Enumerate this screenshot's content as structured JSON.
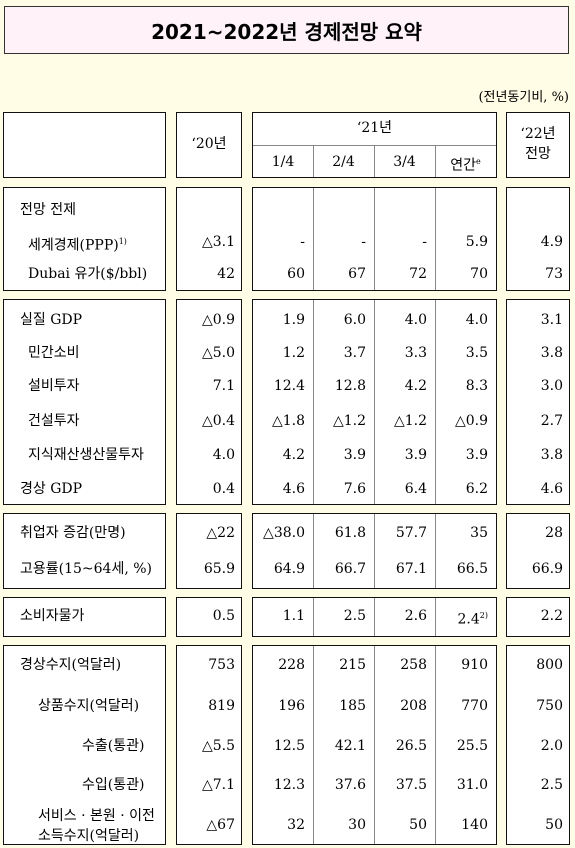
{
  "title": "2021~2022년 경제전망 요약",
  "unit": "(전년동기비, %)",
  "header": {
    "y20": "‘20년",
    "y21": "‘21년",
    "q1": "1/4",
    "q2": "2/4",
    "q3": "3/4",
    "annual": "연간",
    "annual_sup": "e",
    "y22_line1": "‘22년",
    "y22_line2": "전망"
  },
  "groups": [
    {
      "rows": [
        {
          "label": "전망 전제",
          "indent": 0,
          "values": [
            "",
            "",
            "",
            "",
            "",
            ""
          ]
        },
        {
          "label": "세계경제(PPP)",
          "sup": "1)",
          "indent": 1,
          "values": [
            "△3.1",
            "-",
            "-",
            "-",
            "5.9",
            "4.9"
          ]
        },
        {
          "label": "Dubai 유가($/bbl)",
          "indent": 2,
          "values": [
            "42",
            "60",
            "67",
            "72",
            "70",
            "73"
          ]
        }
      ]
    },
    {
      "rows": [
        {
          "label": "실질 GDP",
          "indent": 0,
          "values": [
            "△0.9",
            "1.9",
            "6.0",
            "4.0",
            "4.0",
            "3.1"
          ]
        },
        {
          "label": "민간소비",
          "indent": 1,
          "values": [
            "△5.0",
            "1.2",
            "3.7",
            "3.3",
            "3.5",
            "3.8"
          ]
        },
        {
          "label": "설비투자",
          "indent": 1,
          "values": [
            "7.1",
            "12.4",
            "12.8",
            "4.2",
            "8.3",
            "3.0"
          ]
        },
        {
          "label": "건설투자",
          "indent": 1,
          "values": [
            "△0.4",
            "△1.8",
            "△1.2",
            "△1.2",
            "△0.9",
            "2.7"
          ]
        },
        {
          "label": "지식재산생산물투자",
          "indent": 1,
          "values": [
            "4.0",
            "4.2",
            "3.9",
            "3.9",
            "3.9",
            "3.8"
          ]
        },
        {
          "label": "경상 GDP",
          "indent": 0,
          "values": [
            "0.4",
            "4.6",
            "7.6",
            "6.4",
            "6.2",
            "4.6"
          ]
        }
      ]
    },
    {
      "rows": [
        {
          "label": "취업자 증감(만명)",
          "indent": 0,
          "values": [
            "△22",
            "△38.0",
            "61.8",
            "57.7",
            "35",
            "28"
          ]
        },
        {
          "label": "고용률(15~64세, %)",
          "indent": 0,
          "values": [
            "65.9",
            "64.9",
            "66.7",
            "67.1",
            "66.5",
            "66.9"
          ]
        }
      ]
    },
    {
      "rows": [
        {
          "label": "소비자물가",
          "indent": 0,
          "values": [
            "0.5",
            "1.1",
            "2.5",
            "2.6",
            "2.4",
            "2.2"
          ],
          "annual_sup": "2)"
        }
      ]
    },
    {
      "rows": [
        {
          "label": "경상수지(억달러)",
          "indent": 0,
          "values": [
            "753",
            "228",
            "215",
            "258",
            "910",
            "800"
          ]
        },
        {
          "label": "상품수지(억달러)",
          "indent": 3,
          "values": [
            "819",
            "196",
            "185",
            "208",
            "770",
            "750"
          ]
        },
        {
          "label": "수출(통관)",
          "indent": 4,
          "values": [
            "△5.5",
            "12.5",
            "42.1",
            "26.5",
            "25.5",
            "2.0"
          ]
        },
        {
          "label": "수입(통관)",
          "indent": 4,
          "values": [
            "△7.1",
            "12.3",
            "37.6",
            "37.5",
            "31.0",
            "2.5"
          ]
        },
        {
          "label": "서비스 · 본원 · 이전",
          "label2": "소득수지(억달러)",
          "indent": 3,
          "values": [
            "△67",
            "32",
            "30",
            "50",
            "140",
            "50"
          ]
        }
      ]
    }
  ]
}
